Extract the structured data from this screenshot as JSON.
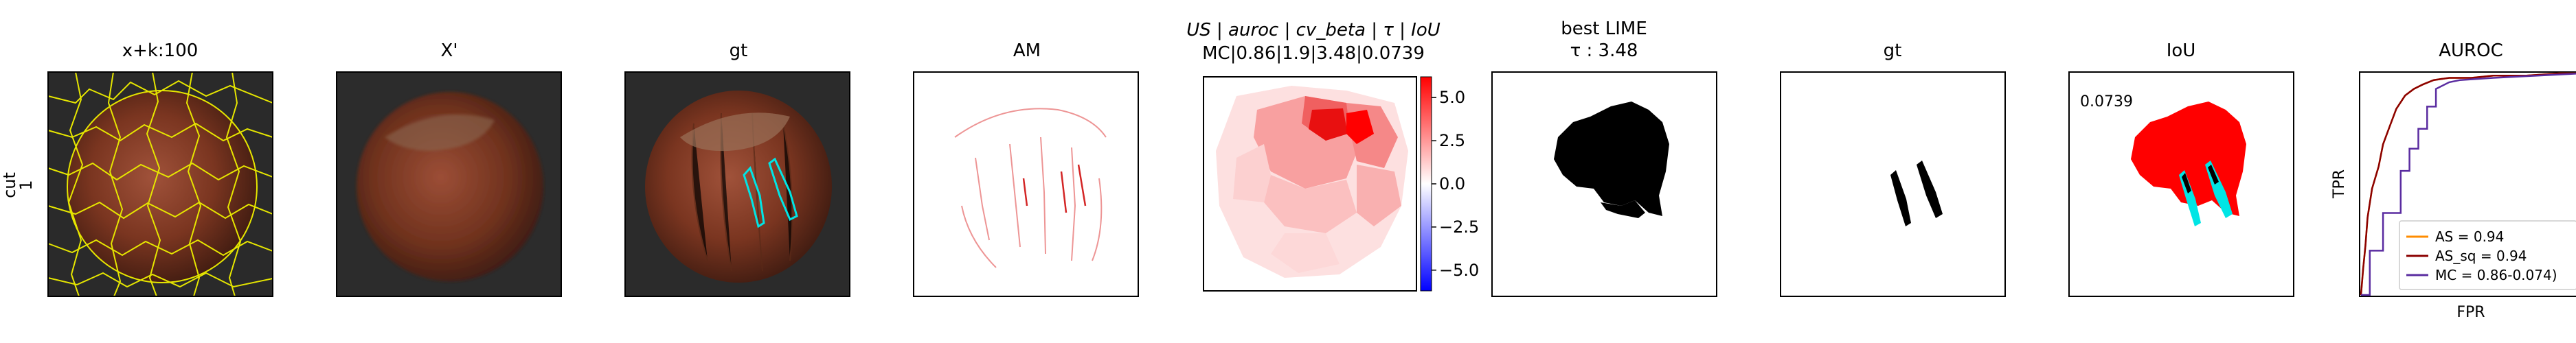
{
  "row_label": {
    "line1": "cut",
    "line2": "1"
  },
  "panels": [
    {
      "title": "x+k:100"
    },
    {
      "title": "X'"
    },
    {
      "title": "gt"
    },
    {
      "title": "AM"
    },
    {
      "title_line1": "US | auroc | cv_beta | τ | IoU",
      "title_line2": "MC|0.86|1.9|3.48|0.0739"
    },
    {
      "title_line1": "best LIME",
      "title_line2": "τ : 3.48"
    },
    {
      "title": "gt"
    },
    {
      "title": "IoU",
      "annotation": "0.0739"
    },
    {
      "title": "AUROC"
    }
  ],
  "colorbar": {
    "ticks": [
      "5.0",
      "2.5",
      "0.0",
      "−2.5",
      "−5.0"
    ],
    "tick_values": [
      5.0,
      2.5,
      0.0,
      -2.5,
      -5.0
    ],
    "range": [
      -6.2,
      6.2
    ],
    "colors": {
      "high": "#ff0000",
      "mid": "#ffffff",
      "low": "#0000ff"
    }
  },
  "chart_data": {
    "type": "line",
    "title": "AUROC",
    "xlabel": "FPR",
    "ylabel": "TPR",
    "xlim": [
      0,
      1
    ],
    "ylim": [
      0,
      1
    ],
    "legend_position": "bottom-right",
    "series": [
      {
        "name": "AS = 0.94",
        "color": "#ff8c00",
        "x": [
          0,
          0.01,
          0.02,
          0.03,
          0.05,
          0.08,
          0.1,
          0.13,
          0.16,
          0.2,
          0.24,
          0.28,
          0.33,
          0.4,
          0.5,
          0.6,
          0.75,
          0.9,
          1.0
        ],
        "y": [
          0,
          0.12,
          0.22,
          0.35,
          0.48,
          0.58,
          0.68,
          0.76,
          0.84,
          0.9,
          0.93,
          0.95,
          0.97,
          0.98,
          0.98,
          0.99,
          0.99,
          1.0,
          1.0
        ]
      },
      {
        "name": "AS_sq = 0.94",
        "color": "#8b0000",
        "x": [
          0,
          0.01,
          0.02,
          0.03,
          0.05,
          0.08,
          0.1,
          0.13,
          0.16,
          0.2,
          0.24,
          0.28,
          0.33,
          0.4,
          0.5,
          0.6,
          0.75,
          0.9,
          1.0
        ],
        "y": [
          0,
          0.12,
          0.22,
          0.35,
          0.48,
          0.58,
          0.68,
          0.76,
          0.84,
          0.9,
          0.93,
          0.95,
          0.97,
          0.98,
          0.98,
          0.99,
          0.99,
          1.0,
          1.0
        ]
      },
      {
        "name": "MC = 0.86-0.074)",
        "color": "#5a2ca0",
        "x": [
          0,
          0.03,
          0.04,
          0.04,
          0.1,
          0.1,
          0.18,
          0.18,
          0.22,
          0.22,
          0.26,
          0.26,
          0.3,
          0.3,
          0.34,
          0.34,
          0.4,
          0.45,
          0.6,
          0.8,
          1.0
        ],
        "y": [
          0,
          0.0,
          0.0,
          0.2,
          0.2,
          0.37,
          0.37,
          0.56,
          0.56,
          0.66,
          0.66,
          0.75,
          0.75,
          0.85,
          0.85,
          0.93,
          0.96,
          0.97,
          0.98,
          0.99,
          1.0
        ]
      }
    ]
  }
}
